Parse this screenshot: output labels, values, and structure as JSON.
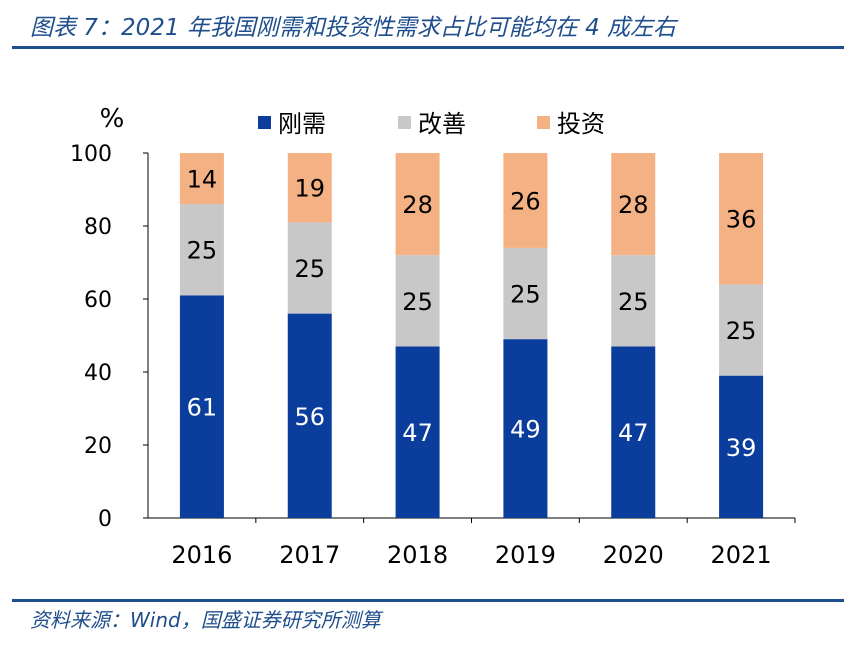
{
  "title": "图表 7：2021 年我国刚需和投资性需求占比可能均在 4 成左右",
  "source": "资料来源：Wind，国盛证券研究所测算",
  "colors": {
    "accent": "#1F4E8C",
    "刚需": "#0B3D9C",
    "改善": "#C8C8C8",
    "投资": "#F4B183"
  },
  "chart_data": {
    "type": "bar",
    "stacked": true,
    "ylabel": "%",
    "ylim": [
      0,
      100
    ],
    "yticks": [
      0,
      20,
      40,
      60,
      80,
      100
    ],
    "grid": false,
    "legend": "top",
    "categories": [
      "2016",
      "2017",
      "2018",
      "2019",
      "2020",
      "2021"
    ],
    "series": [
      {
        "name": "刚需",
        "values": [
          61,
          56,
          47,
          49,
          47,
          39
        ]
      },
      {
        "name": "改善",
        "values": [
          25,
          25,
          25,
          25,
          25,
          25
        ]
      },
      {
        "name": "投资",
        "values": [
          14,
          19,
          28,
          26,
          28,
          36
        ]
      }
    ]
  }
}
